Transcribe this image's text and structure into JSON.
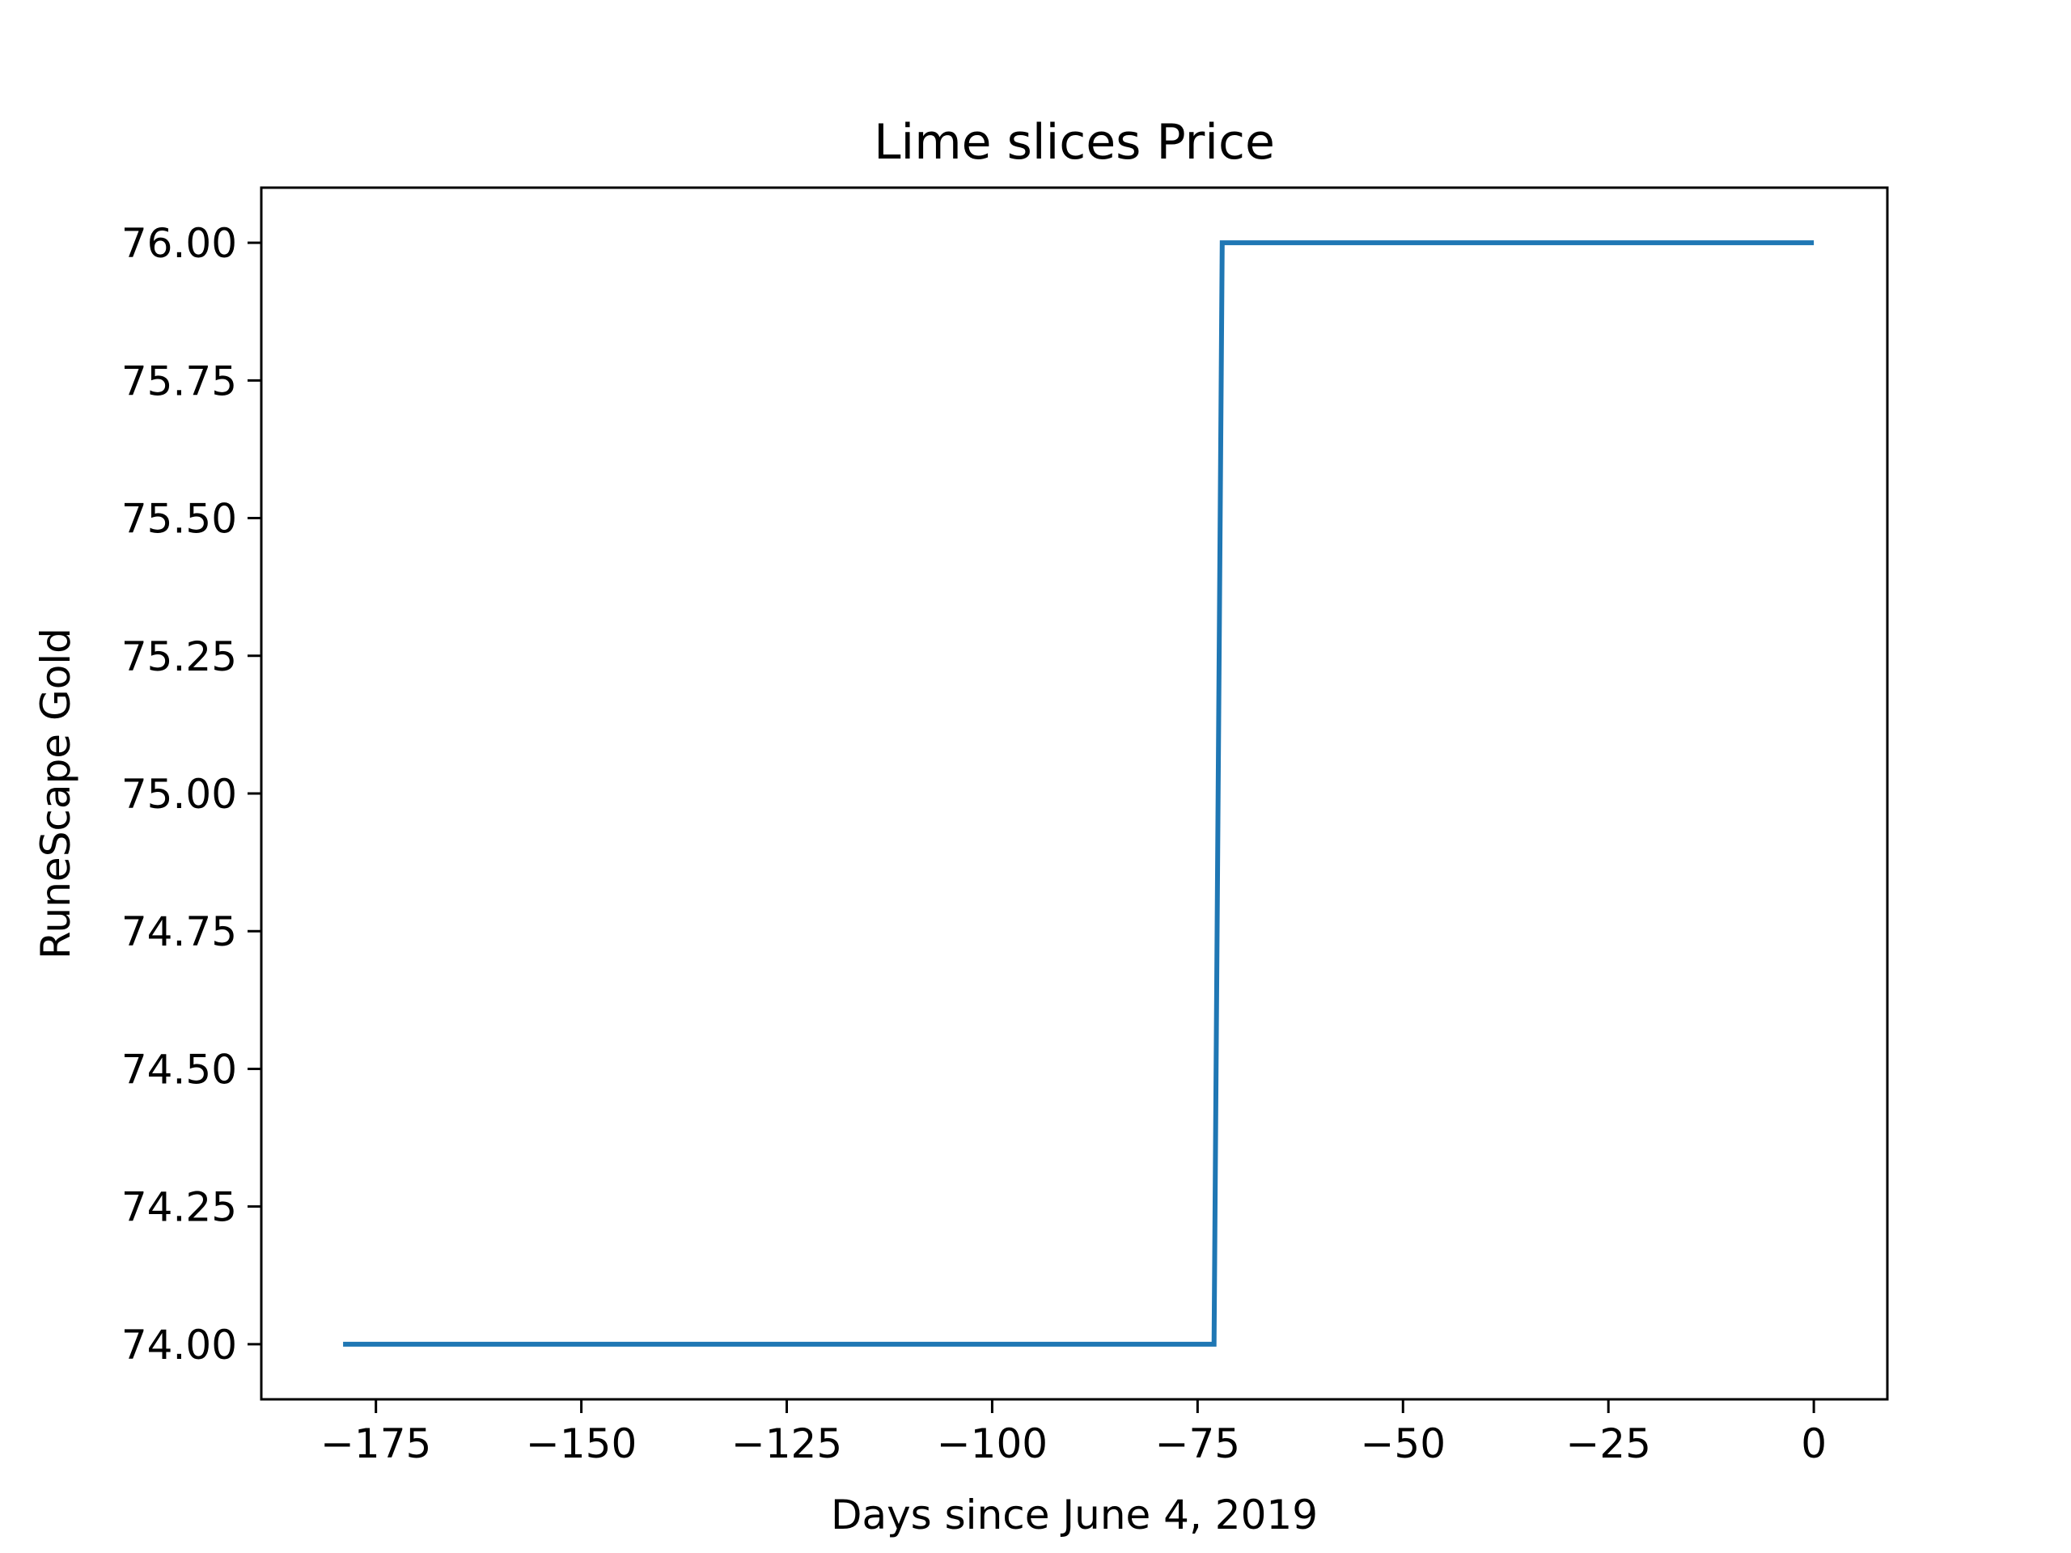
{
  "chart_data": {
    "type": "line",
    "title": "Lime slices Price",
    "xlabel": "Days since June 4, 2019",
    "ylabel": "RuneScape Gold",
    "xlim": [
      -188.95,
      8.95
    ],
    "ylim": [
      73.9,
      76.1
    ],
    "xticks": [
      -175,
      -150,
      -125,
      -100,
      -75,
      -50,
      -25,
      0
    ],
    "xtick_labels": [
      "−175",
      "−150",
      "−125",
      "−100",
      "−75",
      "−50",
      "−25",
      "0"
    ],
    "yticks": [
      74.0,
      74.25,
      74.5,
      74.75,
      75.0,
      75.25,
      75.5,
      75.75,
      76.0
    ],
    "ytick_labels": [
      "74.00",
      "74.25",
      "74.50",
      "74.75",
      "75.00",
      "75.25",
      "75.50",
      "75.75",
      "76.00"
    ],
    "grid": false,
    "series": [
      {
        "color": "#1f77b4",
        "x": [
          -179,
          -73,
          -72,
          0
        ],
        "y": [
          74,
          74,
          76,
          76
        ]
      }
    ]
  }
}
